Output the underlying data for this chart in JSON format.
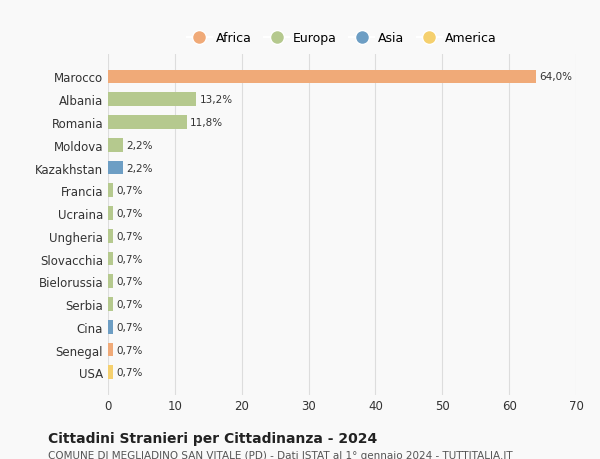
{
  "countries": [
    "Marocco",
    "Albania",
    "Romania",
    "Moldova",
    "Kazakhstan",
    "Francia",
    "Ucraina",
    "Ungheria",
    "Slovacchia",
    "Bielorussia",
    "Serbia",
    "Cina",
    "Senegal",
    "USA"
  ],
  "values": [
    64.0,
    13.2,
    11.8,
    2.2,
    2.2,
    0.7,
    0.7,
    0.7,
    0.7,
    0.7,
    0.7,
    0.7,
    0.7,
    0.7
  ],
  "labels": [
    "64,0%",
    "13,2%",
    "11,8%",
    "2,2%",
    "2,2%",
    "0,7%",
    "0,7%",
    "0,7%",
    "0,7%",
    "0,7%",
    "0,7%",
    "0,7%",
    "0,7%",
    "0,7%"
  ],
  "colors": [
    "#f0aa78",
    "#b5c98e",
    "#b5c98e",
    "#b5c98e",
    "#6d9ec4",
    "#b5c98e",
    "#b5c98e",
    "#b5c98e",
    "#b5c98e",
    "#b5c98e",
    "#b5c98e",
    "#6d9ec4",
    "#f0aa78",
    "#f5d06e"
  ],
  "legend_labels": [
    "Africa",
    "Europa",
    "Asia",
    "America"
  ],
  "legend_colors": [
    "#f0aa78",
    "#b5c98e",
    "#6d9ec4",
    "#f5d06e"
  ],
  "title": "Cittadini Stranieri per Cittadinanza - 2024",
  "subtitle": "COMUNE DI MEGLIADINO SAN VITALE (PD) - Dati ISTAT al 1° gennaio 2024 - TUTTITALIA.IT",
  "xlim": [
    0,
    70
  ],
  "xticks": [
    0,
    10,
    20,
    30,
    40,
    50,
    60,
    70
  ],
  "bg_color": "#f9f9f9",
  "grid_color": "#dddddd",
  "bar_height": 0.6
}
